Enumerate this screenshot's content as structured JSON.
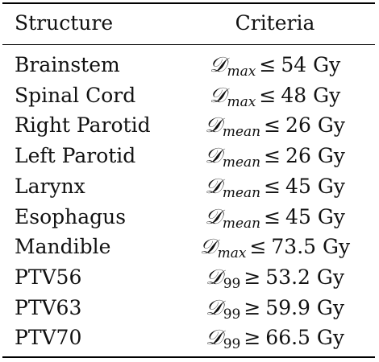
{
  "table": {
    "headers": {
      "structure": "Structure",
      "criteria": "Criteria"
    },
    "rows": [
      {
        "structure": "Brainstem",
        "symbol": "𝒟",
        "subscript": "max",
        "operator": "≤",
        "value": "54",
        "unit": "Gy"
      },
      {
        "structure": "Spinal Cord",
        "symbol": "𝒟",
        "subscript": "max",
        "operator": "≤",
        "value": "48",
        "unit": "Gy"
      },
      {
        "structure": "Right Parotid",
        "symbol": "𝒟",
        "subscript": "mean",
        "operator": "≤",
        "value": "26",
        "unit": "Gy"
      },
      {
        "structure": "Left Parotid",
        "symbol": "𝒟",
        "subscript": "mean",
        "operator": "≤",
        "value": "26",
        "unit": "Gy"
      },
      {
        "structure": "Larynx",
        "symbol": "𝒟",
        "subscript": "mean",
        "operator": "≤",
        "value": "45",
        "unit": "Gy"
      },
      {
        "structure": "Esophagus",
        "symbol": "𝒟",
        "subscript": "mean",
        "operator": "≤",
        "value": "45",
        "unit": "Gy"
      },
      {
        "structure": "Mandible",
        "symbol": "𝒟",
        "subscript": "max",
        "operator": "≤",
        "value": "73.5",
        "unit": "Gy"
      },
      {
        "structure": "PTV56",
        "symbol": "𝒟",
        "subscript": "99",
        "operator": "≥",
        "value": "53.2",
        "unit": "Gy"
      },
      {
        "structure": "PTV63",
        "symbol": "𝒟",
        "subscript": "99",
        "operator": "≥",
        "value": "59.9",
        "unit": "Gy"
      },
      {
        "structure": "PTV70",
        "symbol": "𝒟",
        "subscript": "99",
        "operator": "≥",
        "value": "66.5",
        "unit": "Gy"
      }
    ]
  }
}
